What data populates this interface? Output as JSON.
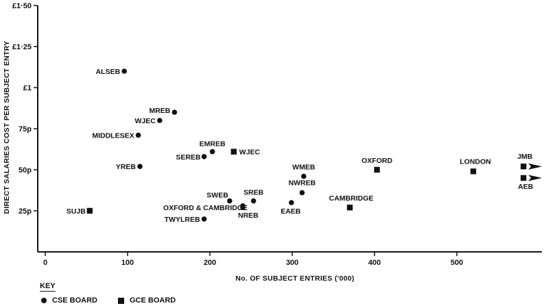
{
  "chart_data": {
    "type": "scatter",
    "xlabel": "No. OF SUBJECT ENTRIES ('000)",
    "ylabel": "DIRECT SALARIES COST PER SUBJECT ENTRY",
    "xlim": [
      -10,
      590
    ],
    "ylim": [
      0,
      1.5
    ],
    "xticks": [
      {
        "value": 0,
        "label": "0"
      },
      {
        "value": 100,
        "label": "100"
      },
      {
        "value": 200,
        "label": "200"
      },
      {
        "value": 300,
        "label": "300"
      },
      {
        "value": 400,
        "label": "400"
      },
      {
        "value": 500,
        "label": "500"
      }
    ],
    "yticks": [
      {
        "value": 0.25,
        "label": "25p"
      },
      {
        "value": 0.5,
        "label": "50p"
      },
      {
        "value": 0.75,
        "label": "75p"
      },
      {
        "value": 1.0,
        "label": "£1"
      },
      {
        "value": 1.25,
        "label": "£1·25"
      },
      {
        "value": 1.5,
        "label": "£1·50"
      }
    ],
    "grid": false,
    "series": [
      {
        "name": "CSE BOARD",
        "marker": "circle",
        "points": [
          {
            "label": "ALSEB",
            "x": 96,
            "y": 1.1
          },
          {
            "label": "MREB",
            "x": 157,
            "y": 0.85
          },
          {
            "label": "WJEC",
            "x": 139,
            "y": 0.8
          },
          {
            "label": "MIDDLESEX",
            "x": 113,
            "y": 0.71
          },
          {
            "label": "YREB",
            "x": 115,
            "y": 0.52
          },
          {
            "label": "EMREB",
            "x": 203,
            "y": 0.61
          },
          {
            "label": "SEREB",
            "x": 193,
            "y": 0.58
          },
          {
            "label": "SWEB",
            "x": 224,
            "y": 0.31
          },
          {
            "label": "OXFORD & CAMBRIDGE",
            "x": 240,
            "y": 0.28
          },
          {
            "label": "SREB",
            "x": 253,
            "y": 0.31
          },
          {
            "label": "NREB",
            "x": 240,
            "y": 0.27
          },
          {
            "label": "TWYLREB",
            "x": 193,
            "y": 0.2
          },
          {
            "label": "WMEB",
            "x": 314,
            "y": 0.46
          },
          {
            "label": "NWREB",
            "x": 312,
            "y": 0.36
          },
          {
            "label": "EAEB",
            "x": 299,
            "y": 0.3
          }
        ]
      },
      {
        "name": "GCE BOARD",
        "marker": "square",
        "points": [
          {
            "label": "SUJB",
            "x": 54,
            "y": 0.25
          },
          {
            "label": "WJEC",
            "x": 229,
            "y": 0.61
          },
          {
            "label": "OXFORD",
            "x": 403,
            "y": 0.5
          },
          {
            "label": "LONDON",
            "x": 520,
            "y": 0.49
          },
          {
            "label": "CAMBRIDGE",
            "x": 370,
            "y": 0.27
          },
          {
            "label": "JMB",
            "x": 581,
            "y": 0.52,
            "offscale": true
          },
          {
            "label": "AEB",
            "x": 581,
            "y": 0.45,
            "offscale": true
          }
        ]
      }
    ],
    "legend": {
      "title": "KEY",
      "position": "bottom-left"
    }
  }
}
